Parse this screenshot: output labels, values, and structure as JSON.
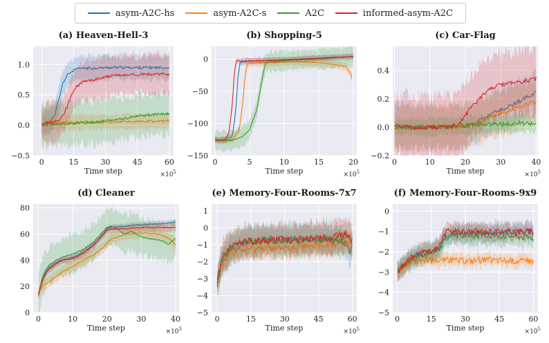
{
  "legend": [
    {
      "name": "asym-A2C-hs",
      "color": "#1f77b4"
    },
    {
      "name": "asym-A2C-s",
      "color": "#ff7f0e"
    },
    {
      "name": "A2C",
      "color": "#2ca02c"
    },
    {
      "name": "informed-asym-A2C",
      "color": "#d62728"
    }
  ],
  "chart_data": [
    {
      "type": "line",
      "title": "(a) Heaven-Hell-3",
      "xlabel": "Time step",
      "x_multiplier": "×10^5",
      "xlim": [
        -4,
        62
      ],
      "ylim": [
        -0.5,
        1.3
      ],
      "xticks": [
        0,
        15,
        30,
        45,
        60
      ],
      "yticks": [
        -0.5,
        0.0,
        0.5,
        1.0
      ],
      "ytick_labels": [
        "−0.5",
        "0.0",
        "0.5",
        "1.0"
      ],
      "series": [
        {
          "name": "asym-A2C-hs",
          "x": [
            0,
            3,
            6,
            8,
            10,
            12,
            14,
            16,
            18,
            20,
            25,
            30,
            40,
            50,
            60
          ],
          "y": [
            0.02,
            0.05,
            0.15,
            0.4,
            0.7,
            0.82,
            0.88,
            0.92,
            0.93,
            0.94,
            0.94,
            0.95,
            0.95,
            0.95,
            0.95
          ],
          "band": 0.2
        },
        {
          "name": "asym-A2C-s",
          "x": [
            0,
            5,
            10,
            15,
            20,
            30,
            40,
            50,
            60
          ],
          "y": [
            0.0,
            0.03,
            0.05,
            0.04,
            0.05,
            0.05,
            0.06,
            0.06,
            0.07
          ],
          "band": 0.12
        },
        {
          "name": "A2C",
          "x": [
            0,
            5,
            10,
            15,
            20,
            25,
            30,
            35,
            40,
            45,
            50,
            55,
            60
          ],
          "y": [
            0.0,
            0.02,
            0.02,
            0.03,
            0.04,
            0.05,
            0.07,
            0.09,
            0.12,
            0.15,
            0.17,
            0.18,
            0.19
          ],
          "band": 0.35
        },
        {
          "name": "informed-asym-A2C",
          "x": [
            0,
            5,
            8,
            10,
            12,
            14,
            16,
            18,
            20,
            25,
            30,
            35,
            40,
            50,
            60
          ],
          "y": [
            0.03,
            0.05,
            0.08,
            0.15,
            0.3,
            0.5,
            0.62,
            0.68,
            0.72,
            0.75,
            0.8,
            0.82,
            0.83,
            0.84,
            0.84
          ],
          "band": 0.32
        }
      ]
    },
    {
      "type": "line",
      "title": "(b) Shopping-5",
      "xlabel": "Time step",
      "x_multiplier": "×10^5",
      "xlim": [
        -0.5,
        20.5
      ],
      "ylim": [
        -150,
        20
      ],
      "xticks": [
        0,
        5,
        10,
        15,
        20
      ],
      "yticks": [
        -150,
        -100,
        -50,
        0
      ],
      "ytick_labels": [
        "−150",
        "−100",
        "−50",
        "0"
      ],
      "series": [
        {
          "name": "asym-A2C-hs",
          "x": [
            0,
            0.5,
            1.5,
            2.5,
            3,
            3.3,
            3.6,
            4,
            5,
            8,
            12,
            16,
            20
          ],
          "y": [
            -125,
            -127,
            -126,
            -120,
            -80,
            -30,
            -6,
            -4,
            -3,
            -2,
            0,
            2,
            4
          ],
          "band": 5
        },
        {
          "name": "asym-A2C-s",
          "x": [
            0,
            0.5,
            1.5,
            2.5,
            3.5,
            4,
            4.3,
            4.6,
            5,
            8,
            12,
            16,
            19,
            19.5,
            19.8
          ],
          "y": [
            -125,
            -126,
            -126,
            -125,
            -110,
            -70,
            -30,
            -10,
            -6,
            -5,
            -4,
            -6,
            -12,
            -20,
            -30
          ],
          "band": 6
        },
        {
          "name": "A2C",
          "x": [
            0,
            1,
            2,
            3,
            4,
            5,
            6,
            6.5,
            7,
            7.3,
            8,
            12,
            16,
            20
          ],
          "y": [
            -126,
            -127,
            -127,
            -125,
            -120,
            -110,
            -80,
            -50,
            -20,
            -6,
            -4,
            -1,
            1,
            4
          ],
          "band": 15
        },
        {
          "name": "informed-asym-A2C",
          "x": [
            0,
            0.5,
            1.5,
            2,
            2.5,
            2.8,
            3.1,
            4,
            8,
            12,
            16,
            20
          ],
          "y": [
            -125,
            -126,
            -125,
            -115,
            -70,
            -20,
            -2,
            -3,
            -2,
            0,
            2,
            4
          ],
          "band": 4
        }
      ]
    },
    {
      "type": "line",
      "title": "(c) Car-Flag",
      "xlabel": "Time step",
      "x_multiplier": "×10^5",
      "xlim": [
        -0.5,
        40.5
      ],
      "ylim": [
        -0.2,
        0.57
      ],
      "xticks": [
        0,
        10,
        20,
        30,
        40
      ],
      "yticks": [
        -0.2,
        0.0,
        0.2,
        0.4
      ],
      "ytick_labels": [
        "−0.2",
        "0.0",
        "0.2",
        "0.4"
      ],
      "series": [
        {
          "name": "asym-A2C-hs",
          "x": [
            0,
            5,
            10,
            15,
            20,
            23,
            25,
            28,
            30,
            33,
            35,
            38,
            40
          ],
          "y": [
            0.0,
            0.0,
            0.0,
            0.0,
            0.01,
            0.03,
            0.06,
            0.1,
            0.12,
            0.15,
            0.18,
            0.22,
            0.25
          ],
          "band": 0.15
        },
        {
          "name": "asym-A2C-s",
          "x": [
            0,
            5,
            10,
            15,
            20,
            23,
            25,
            28,
            30,
            33,
            35,
            38,
            40
          ],
          "y": [
            0.0,
            0.0,
            0.0,
            0.0,
            0.01,
            0.03,
            0.05,
            0.08,
            0.1,
            0.12,
            0.14,
            0.16,
            0.18
          ],
          "band": 0.15
        },
        {
          "name": "A2C",
          "x": [
            0,
            5,
            10,
            15,
            20,
            25,
            30,
            35,
            40
          ],
          "y": [
            0.0,
            0.0,
            0.0,
            0.01,
            0.01,
            0.02,
            0.02,
            0.03,
            0.02
          ],
          "band": 0.06
        },
        {
          "name": "informed-asym-A2C",
          "x": [
            0,
            5,
            10,
            15,
            18,
            20,
            22,
            24,
            26,
            28,
            30,
            33,
            36,
            40
          ],
          "y": [
            0.01,
            0.0,
            0.0,
            0.0,
            0.02,
            0.08,
            0.15,
            0.2,
            0.25,
            0.28,
            0.3,
            0.31,
            0.32,
            0.34
          ],
          "band": 0.22
        }
      ]
    },
    {
      "type": "line",
      "title": "(d) Cleaner",
      "xlabel": "Time step",
      "x_multiplier": "×10^5",
      "xlim": [
        -1.5,
        41
      ],
      "ylim": [
        0,
        83
      ],
      "xticks": [
        0,
        10,
        20,
        30,
        40
      ],
      "yticks": [
        0,
        20,
        40,
        60,
        80
      ],
      "ytick_labels": [
        "0",
        "20",
        "40",
        "60",
        "80"
      ],
      "series": [
        {
          "name": "asym-A2C-hs",
          "x": [
            0,
            1,
            2,
            3,
            5,
            7,
            10,
            13,
            16,
            19,
            20,
            21,
            25,
            30,
            35,
            40
          ],
          "y": [
            13,
            24,
            30,
            34,
            38,
            40,
            42,
            46,
            52,
            60,
            64,
            65,
            66,
            67,
            68,
            69
          ],
          "band": 2
        },
        {
          "name": "asym-A2C-s",
          "x": [
            0,
            1,
            3,
            5,
            7,
            10,
            13,
            16,
            19,
            20,
            21,
            23,
            26,
            30,
            35,
            38,
            40
          ],
          "y": [
            15,
            20,
            23,
            27,
            31,
            35,
            40,
            44,
            50,
            53,
            56,
            58,
            60,
            61,
            60,
            57,
            52
          ],
          "band": 4
        },
        {
          "name": "A2C",
          "x": [
            0,
            1,
            2,
            3,
            5,
            7,
            10,
            13,
            16,
            19,
            20,
            21,
            23,
            25,
            27,
            30,
            33,
            36,
            38,
            40
          ],
          "y": [
            13,
            25,
            32,
            36,
            40,
            42,
            45,
            48,
            54,
            62,
            65,
            66,
            64,
            60,
            62,
            58,
            56,
            55,
            52,
            57
          ],
          "band": 14
        },
        {
          "name": "informed-asym-A2C",
          "x": [
            0,
            1,
            2,
            3,
            5,
            7,
            10,
            13,
            16,
            19,
            20,
            22,
            25,
            30,
            35,
            40
          ],
          "y": [
            13,
            23,
            29,
            33,
            37,
            40,
            41,
            45,
            51,
            60,
            63,
            64,
            64,
            65,
            65,
            65
          ],
          "band": 3
        }
      ]
    },
    {
      "type": "line",
      "title": "(e) Memory-Four-Rooms-7x7",
      "xlabel": "Time step",
      "x_multiplier": "×10^5",
      "xlim": [
        -2.5,
        62
      ],
      "ylim": [
        -5,
        1.4
      ],
      "xticks": [
        0,
        15,
        30,
        45,
        60
      ],
      "yticks": [
        -5,
        -4,
        -3,
        -2,
        -1,
        0,
        1
      ],
      "ytick_labels": [
        "−5",
        "−4",
        "−3",
        "−2",
        "−1",
        "0",
        "1"
      ],
      "series": [
        {
          "name": "asym-A2C-hs",
          "x": [
            0,
            2,
            5,
            10,
            15,
            20,
            30,
            40,
            50,
            58,
            59,
            60
          ],
          "y": [
            -3.2,
            -2.0,
            -1.4,
            -1.0,
            -0.8,
            -0.7,
            -0.7,
            -0.65,
            -0.65,
            -1.0,
            -1.7,
            -1.0
          ],
          "band": 0.8
        },
        {
          "name": "asym-A2C-s",
          "x": [
            0,
            2,
            5,
            10,
            15,
            20,
            30,
            40,
            50,
            60
          ],
          "y": [
            -3.2,
            -2.2,
            -1.6,
            -1.4,
            -1.3,
            -1.2,
            -1.2,
            -1.1,
            -1.0,
            -0.9
          ],
          "band": 0.6
        },
        {
          "name": "A2C",
          "x": [
            0,
            2,
            5,
            10,
            15,
            20,
            30,
            40,
            50,
            60
          ],
          "y": [
            -3.3,
            -2.0,
            -1.3,
            -1.0,
            -0.8,
            -0.75,
            -0.75,
            -0.7,
            -0.7,
            -0.7
          ],
          "band": 0.9
        },
        {
          "name": "informed-asym-A2C",
          "x": [
            0,
            2,
            5,
            10,
            15,
            20,
            30,
            40,
            50,
            58,
            60
          ],
          "y": [
            -3.1,
            -1.8,
            -1.2,
            -0.9,
            -0.8,
            -0.75,
            -0.7,
            -0.7,
            -0.6,
            -0.3,
            -1.0
          ],
          "band": 0.9
        }
      ]
    },
    {
      "type": "line",
      "title": "(f) Memory-Four-Rooms-9x9",
      "xlabel": "Time step",
      "x_multiplier": "×10^5",
      "xlim": [
        -2,
        62
      ],
      "ylim": [
        -5,
        0.35
      ],
      "xticks": [
        0,
        15,
        30,
        45,
        60
      ],
      "yticks": [
        -5,
        -4,
        -3,
        -2,
        -1,
        0
      ],
      "ytick_labels": [
        "−5",
        "−4",
        "−3",
        "−2",
        "−1",
        "0"
      ],
      "series": [
        {
          "name": "asym-A2C-hs",
          "x": [
            0,
            3,
            6,
            10,
            15,
            18,
            20,
            22,
            25,
            30,
            40,
            50,
            60
          ],
          "y": [
            -3.0,
            -2.6,
            -2.3,
            -2.1,
            -2.0,
            -1.9,
            -1.5,
            -1.2,
            -1.1,
            -1.1,
            -1.05,
            -1.0,
            -1.0
          ],
          "band": 0.45
        },
        {
          "name": "asym-A2C-s",
          "x": [
            0,
            3,
            6,
            10,
            15,
            20,
            30,
            40,
            50,
            60
          ],
          "y": [
            -3.0,
            -2.7,
            -2.5,
            -2.4,
            -2.4,
            -2.4,
            -2.45,
            -2.4,
            -2.45,
            -2.45
          ],
          "band": 0.3
        },
        {
          "name": "A2C",
          "x": [
            0,
            3,
            6,
            10,
            15,
            18,
            20,
            22,
            25,
            30,
            40,
            50,
            60
          ],
          "y": [
            -3.0,
            -2.7,
            -2.4,
            -2.2,
            -2.0,
            -1.9,
            -1.6,
            -1.3,
            -1.25,
            -1.2,
            -1.2,
            -1.2,
            -1.3
          ],
          "band": 0.5
        },
        {
          "name": "informed-asym-A2C",
          "x": [
            0,
            3,
            6,
            10,
            15,
            18,
            20,
            22,
            25,
            30,
            40,
            50,
            60
          ],
          "y": [
            -3.0,
            -2.6,
            -2.3,
            -2.1,
            -2.0,
            -1.8,
            -1.3,
            -1.0,
            -1.0,
            -1.0,
            -1.0,
            -1.0,
            -1.0
          ],
          "band": 0.4
        }
      ]
    }
  ]
}
